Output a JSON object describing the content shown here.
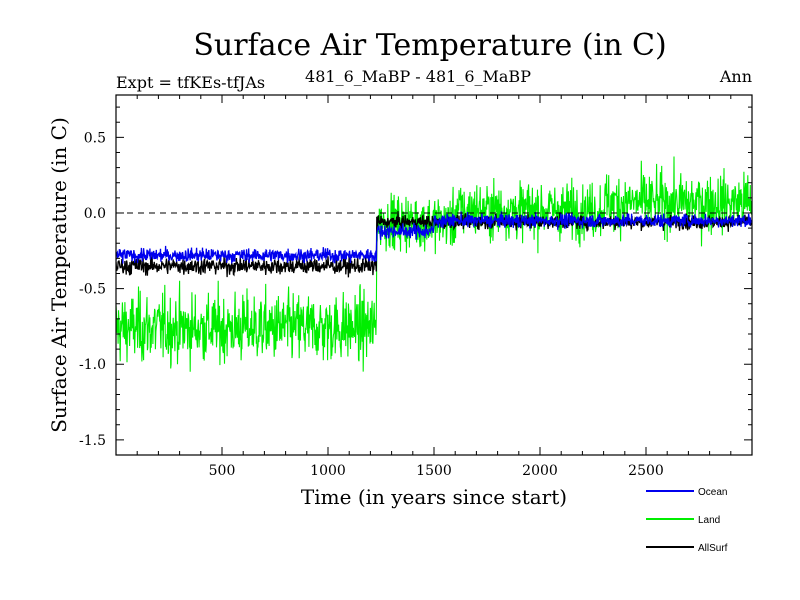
{
  "chart_data": {
    "type": "line",
    "title": "Surface Air Temperature (in C)",
    "subtitle_left": "Expt = tfKEs-tfJAs",
    "subtitle_center": "481_6_MaBP - 481_6_MaBP",
    "subtitle_right": "Ann",
    "xlabel": "Time (in years since start)",
    "ylabel": "Surface Air Temperature (in C)",
    "xlim": [
      0,
      3000
    ],
    "ylim": [
      -1.6,
      0.78
    ],
    "xticks": [
      500,
      1000,
      1500,
      2000,
      2500
    ],
    "xtick_labels": [
      "500",
      "1000",
      "1500",
      "2000",
      "2500"
    ],
    "yticks": [
      0.5,
      0.0,
      -0.5,
      -1.0,
      -1.5
    ],
    "ytick_labels": [
      "0.5",
      "0.0",
      "-0.5",
      "-1.0",
      "-1.5"
    ],
    "zero_line": 0.0,
    "legend_placement": "bottom-right",
    "series": [
      {
        "name": "Land",
        "color": "#00ee00",
        "segments": [
          {
            "x_start": 0,
            "x_end": 1230,
            "mean": -0.76,
            "noise": 0.2
          },
          {
            "x_start": 1230,
            "x_end": 1600,
            "mean": -0.06,
            "noise": 0.16
          },
          {
            "x_start": 1600,
            "x_end": 2300,
            "mean": 0.02,
            "noise": 0.16
          },
          {
            "x_start": 2300,
            "x_end": 3000,
            "mean": 0.07,
            "noise": 0.17
          }
        ]
      },
      {
        "name": "AllSurf",
        "color": "#000000",
        "segments": [
          {
            "x_start": 0,
            "x_end": 1230,
            "mean": -0.35,
            "noise": 0.05
          },
          {
            "x_start": 1230,
            "x_end": 3000,
            "mean": -0.06,
            "noise": 0.04
          }
        ]
      },
      {
        "name": "Ocean",
        "color": "#0000ee",
        "segments": [
          {
            "x_start": 0,
            "x_end": 1230,
            "mean": -0.28,
            "noise": 0.04
          },
          {
            "x_start": 1230,
            "x_end": 1500,
            "mean": -0.12,
            "noise": 0.04
          },
          {
            "x_start": 1500,
            "x_end": 3000,
            "mean": -0.05,
            "noise": 0.04
          }
        ]
      }
    ],
    "legend": [
      {
        "name": "Ocean",
        "color": "#0000ee"
      },
      {
        "name": "Land",
        "color": "#00ee00"
      },
      {
        "name": "AllSurf",
        "color": "#000000"
      }
    ]
  }
}
